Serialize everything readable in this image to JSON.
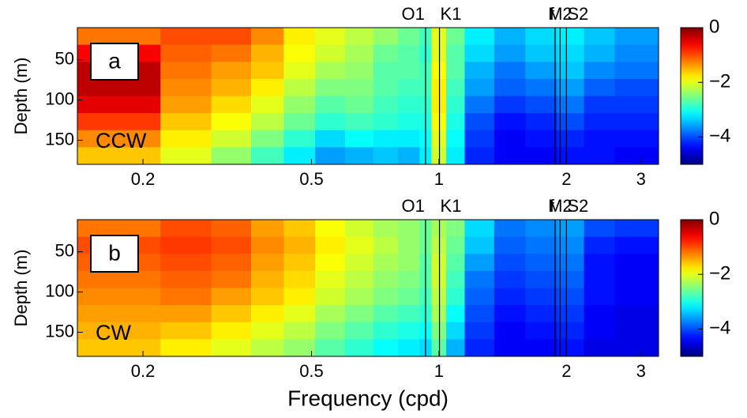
{
  "chart_data": [
    {
      "type": "heatmap",
      "panel_label": "a",
      "annotation": "CCW",
      "ylabel": "Depth (m)",
      "colormap": "jet",
      "xscale": "log",
      "y_inverted": true,
      "xlim": [
        0.14,
        3.3
      ],
      "xticks": [
        0.2,
        0.5,
        1,
        2,
        3
      ],
      "ylim": [
        10,
        180
      ],
      "yticks": [
        50,
        100,
        150
      ],
      "clim": [
        -5,
        0
      ],
      "cticks": [
        0,
        {
          "value": -2,
          "label": "−2"
        },
        {
          "value": -4,
          "label": "−4"
        }
      ],
      "lines": [
        {
          "label": "O1",
          "x": 0.9295
        },
        {
          "label": "K1",
          "x": 1.0027
        },
        {
          "label": "f",
          "x": 1.88
        },
        {
          "label": "M2",
          "x": 1.9323
        },
        {
          "label": "S2",
          "x": 2.0
        }
      ],
      "x_edges": [
        0.14,
        0.22,
        0.29,
        0.36,
        0.43,
        0.51,
        0.6,
        0.7,
        0.8,
        0.9,
        0.96,
        1.04,
        1.15,
        1.35,
        1.6,
        1.9,
        2.2,
        2.6,
        3.3
      ],
      "y_edges": [
        10,
        31.25,
        52.5,
        73.75,
        95,
        116.25,
        137.5,
        158.75,
        180
      ],
      "z": [
        [
          -1.2,
          -1.0,
          -1.0,
          -1.3,
          -1.8,
          -2.0,
          -2.2,
          -2.4,
          -2.6,
          -2.8,
          -2.0,
          -2.6,
          -3.2,
          -3.5,
          -3.3,
          -3.2,
          -3.4,
          -3.6
        ],
        [
          -0.6,
          -1.1,
          -1.2,
          -1.5,
          -1.9,
          -2.1,
          -2.3,
          -2.6,
          -2.7,
          -2.9,
          -2.0,
          -2.7,
          -3.3,
          -3.6,
          -3.4,
          -3.3,
          -3.5,
          -3.7
        ],
        [
          -0.3,
          -1.2,
          -1.4,
          -1.6,
          -2.0,
          -2.3,
          -2.4,
          -2.7,
          -2.7,
          -2.8,
          -1.9,
          -2.7,
          -3.5,
          -3.8,
          -3.6,
          -3.4,
          -3.7,
          -3.8
        ],
        [
          -0.3,
          -1.3,
          -1.5,
          -1.8,
          -2.2,
          -2.5,
          -2.5,
          -2.7,
          -2.8,
          -2.8,
          -1.8,
          -2.8,
          -3.6,
          -3.9,
          -3.8,
          -3.6,
          -3.9,
          -4.0
        ],
        [
          -0.5,
          -1.4,
          -1.7,
          -2.0,
          -2.4,
          -2.7,
          -2.6,
          -2.8,
          -2.9,
          -2.9,
          -1.8,
          -2.9,
          -3.8,
          -4.1,
          -4.0,
          -3.8,
          -4.1,
          -4.1
        ],
        [
          -0.9,
          -1.6,
          -1.9,
          -2.2,
          -2.6,
          -2.9,
          -2.8,
          -2.9,
          -3.0,
          -3.0,
          -1.9,
          -3.0,
          -4.0,
          -4.3,
          -4.2,
          -4.0,
          -4.2,
          -4.2
        ],
        [
          -1.3,
          -1.8,
          -2.1,
          -2.5,
          -2.9,
          -3.3,
          -3.1,
          -3.2,
          -3.2,
          -3.1,
          -2.0,
          -3.1,
          -4.1,
          -4.4,
          -4.3,
          -4.2,
          -4.3,
          -4.3
        ],
        [
          -1.6,
          -2.0,
          -2.4,
          -2.8,
          -3.2,
          -3.6,
          -3.5,
          -3.4,
          -3.5,
          -3.2,
          -2.1,
          -3.2,
          -4.2,
          -4.4,
          -4.4,
          -4.3,
          -4.3,
          -4.4
        ]
      ]
    },
    {
      "type": "heatmap",
      "panel_label": "b",
      "annotation": "CW",
      "ylabel": "Depth (m)",
      "xlabel": "Frequency (cpd)",
      "colormap": "jet",
      "xscale": "log",
      "y_inverted": true,
      "xlim": [
        0.14,
        3.3
      ],
      "xticks": [
        0.2,
        0.5,
        1,
        2,
        3
      ],
      "ylim": [
        10,
        180
      ],
      "yticks": [
        50,
        100,
        150
      ],
      "clim": [
        -5,
        0
      ],
      "cticks": [
        0,
        {
          "value": -2,
          "label": "−2"
        },
        {
          "value": -4,
          "label": "−4"
        }
      ],
      "lines": [
        {
          "label": "O1",
          "x": 0.9295
        },
        {
          "label": "K1",
          "x": 1.0027
        },
        {
          "label": "f",
          "x": 1.88
        },
        {
          "label": "M2",
          "x": 1.9323
        },
        {
          "label": "S2",
          "x": 2.0
        }
      ],
      "x_edges": [
        0.14,
        0.22,
        0.29,
        0.36,
        0.43,
        0.51,
        0.6,
        0.7,
        0.8,
        0.9,
        0.96,
        1.04,
        1.15,
        1.35,
        1.6,
        1.9,
        2.2,
        2.6,
        3.3
      ],
      "y_edges": [
        10,
        31.25,
        52.5,
        73.75,
        95,
        116.25,
        137.5,
        158.75,
        180
      ],
      "z": [
        [
          -1.2,
          -1.0,
          -1.1,
          -1.4,
          -1.6,
          -1.9,
          -2.1,
          -2.3,
          -2.4,
          -2.6,
          -2.3,
          -2.5,
          -3.3,
          -3.8,
          -3.7,
          -3.6,
          -4.0,
          -4.1
        ],
        [
          -1.0,
          -0.9,
          -1.0,
          -1.3,
          -1.5,
          -1.8,
          -2.0,
          -2.2,
          -2.4,
          -2.6,
          -2.2,
          -2.6,
          -3.4,
          -3.9,
          -3.8,
          -3.7,
          -4.2,
          -4.3
        ],
        [
          -1.1,
          -1.0,
          -1.1,
          -1.4,
          -1.6,
          -1.9,
          -2.1,
          -2.3,
          -2.4,
          -2.7,
          -2.1,
          -2.7,
          -3.6,
          -4.0,
          -3.9,
          -3.8,
          -4.3,
          -4.4
        ],
        [
          -1.2,
          -1.1,
          -1.2,
          -1.5,
          -1.7,
          -2.0,
          -2.2,
          -2.4,
          -2.5,
          -2.7,
          -2.1,
          -2.8,
          -3.8,
          -4.1,
          -4.0,
          -3.9,
          -4.3,
          -4.4
        ],
        [
          -1.3,
          -1.2,
          -1.4,
          -1.6,
          -1.8,
          -2.1,
          -2.3,
          -2.5,
          -2.6,
          -2.8,
          -2.2,
          -2.9,
          -3.9,
          -4.2,
          -4.1,
          -4.0,
          -4.3,
          -4.4
        ],
        [
          -1.4,
          -1.4,
          -1.6,
          -1.8,
          -2.0,
          -2.3,
          -2.5,
          -2.7,
          -2.8,
          -2.9,
          -2.3,
          -3.1,
          -4.0,
          -4.3,
          -4.2,
          -4.1,
          -4.4,
          -4.5
        ],
        [
          -1.5,
          -1.6,
          -1.8,
          -2.0,
          -2.2,
          -2.5,
          -2.7,
          -2.9,
          -3.0,
          -3.1,
          -2.5,
          -3.3,
          -4.1,
          -4.4,
          -4.3,
          -4.2,
          -4.4,
          -4.5
        ],
        [
          -1.6,
          -1.8,
          -2.0,
          -2.2,
          -2.4,
          -2.7,
          -2.9,
          -3.1,
          -3.2,
          -3.3,
          -2.7,
          -3.5,
          -4.2,
          -4.4,
          -4.4,
          -4.3,
          -4.5,
          -4.5
        ]
      ]
    }
  ]
}
